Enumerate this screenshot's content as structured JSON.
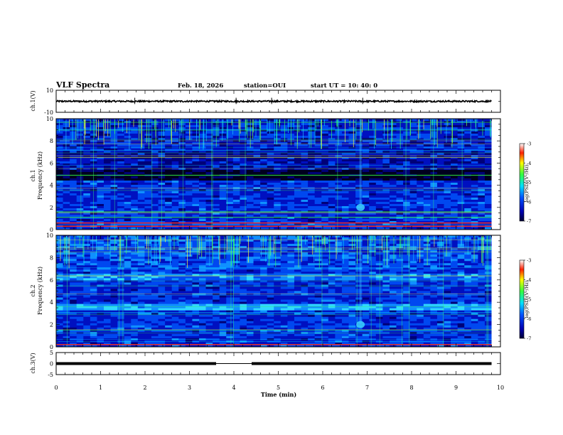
{
  "header": {
    "title": "VLF Spectra",
    "date": "Feb. 18, 2026",
    "station": "station=OUI",
    "start": "start  UT =   10: 40: 0"
  },
  "colors": {
    "background": "#ffffff",
    "axis": "#000000",
    "waveform": "#000000"
  },
  "chart_data": [
    {
      "id": "ch1-waveform",
      "type": "line",
      "ylabel": "ch.1(V)",
      "ylim": [
        -10,
        10
      ],
      "yticks": [
        {
          "value": 10,
          "label": "10"
        },
        {
          "value": -10,
          "label": "-10"
        }
      ],
      "xlim": [
        0,
        10
      ],
      "mean": 0,
      "amplitude": 0.7,
      "spikes": [
        1.77,
        4.05,
        4.85,
        6.9
      ]
    },
    {
      "id": "ch1-spectrogram",
      "type": "heatmap",
      "ylabel": "Frequency (kHz)",
      "channel_label": "ch.1",
      "ylim": [
        0,
        10
      ],
      "yticks": [
        {
          "value": 0,
          "label": "0"
        },
        {
          "value": 2,
          "label": "2"
        },
        {
          "value": 4,
          "label": "4"
        },
        {
          "value": 6,
          "label": "6"
        },
        {
          "value": 8,
          "label": "8"
        },
        {
          "value": 10,
          "label": "10"
        }
      ],
      "xlim": [
        0,
        10
      ],
      "data_end_min": 9.8,
      "colorbar": {
        "label": "log(PSD)(V²/Hz)",
        "range": [
          -7,
          -3
        ],
        "ticks": [
          {
            "value": -3,
            "label": "-3"
          },
          {
            "value": -4,
            "label": "-4"
          },
          {
            "value": -5,
            "label": "-5"
          },
          {
            "value": -6,
            "label": "-6"
          },
          {
            "value": -7,
            "label": "-7"
          }
        ]
      },
      "features": {
        "burst_event_min": 6.85,
        "burst_freq_khz": 2.0,
        "sferic_top_band_khz": [
          7.2,
          10
        ],
        "dark_gap_khz": [
          4.4,
          5.3
        ],
        "strong_lines_khz": [
          0.3,
          0.6,
          1.1,
          1.6,
          4.9
        ]
      }
    },
    {
      "id": "ch2-spectrogram",
      "type": "heatmap",
      "ylabel": "Frequency (kHz)",
      "channel_label": "ch.2",
      "ylim": [
        0,
        10
      ],
      "yticks": [
        {
          "value": 0,
          "label": "0"
        },
        {
          "value": 2,
          "label": "2"
        },
        {
          "value": 4,
          "label": "4"
        },
        {
          "value": 6,
          "label": "6"
        },
        {
          "value": 8,
          "label": "8"
        },
        {
          "value": 10,
          "label": "10"
        }
      ],
      "xlim": [
        0,
        10
      ],
      "data_end_min": 9.8,
      "colorbar": {
        "label": "log(PSD)(V²/Hz)",
        "range": [
          -7,
          -3
        ],
        "ticks": [
          {
            "value": -3,
            "label": "-3"
          },
          {
            "value": -4,
            "label": "-4"
          },
          {
            "value": -5,
            "label": "-5"
          },
          {
            "value": -6,
            "label": "-6"
          },
          {
            "value": -7,
            "label": "-7"
          }
        ]
      },
      "features": {
        "burst_event_min": 6.85,
        "burst_freq_khz": 2.0,
        "bright_band_khz": [
          3.2,
          3.8
        ],
        "bright_band2_khz": [
          6.0,
          6.6
        ],
        "sferic_top_band_khz": [
          7.0,
          10
        ]
      }
    },
    {
      "id": "ch3-waveform",
      "type": "line",
      "ylabel": "ch.3(V)",
      "ylim": [
        -5,
        5
      ],
      "yticks": [
        {
          "value": 5,
          "label": "5"
        },
        {
          "value": 0,
          "label": "0"
        },
        {
          "value": -5,
          "label": "-5"
        }
      ],
      "xlim": [
        0,
        10
      ],
      "level": 0,
      "gap": [
        3.6,
        4.4
      ]
    }
  ],
  "xaxis": {
    "label": "Time (min)",
    "ticks": [
      {
        "value": 0,
        "label": "0"
      },
      {
        "value": 1,
        "label": "1"
      },
      {
        "value": 2,
        "label": "2"
      },
      {
        "value": 3,
        "label": "3"
      },
      {
        "value": 4,
        "label": "4"
      },
      {
        "value": 5,
        "label": "5"
      },
      {
        "value": 6,
        "label": "6"
      },
      {
        "value": 7,
        "label": "7"
      },
      {
        "value": 8,
        "label": "8"
      },
      {
        "value": 9,
        "label": "9"
      },
      {
        "value": 10,
        "label": "10"
      }
    ]
  }
}
